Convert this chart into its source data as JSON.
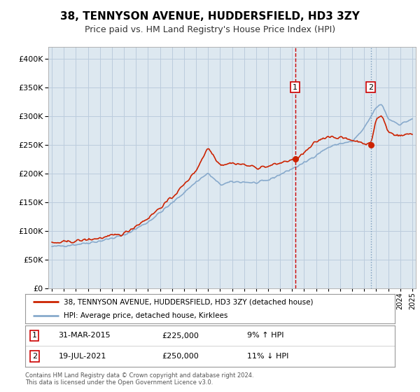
{
  "title": "38, TENNYSON AVENUE, HUDDERSFIELD, HD3 3ZY",
  "subtitle": "Price paid vs. HM Land Registry's House Price Index (HPI)",
  "legend_line1": "38, TENNYSON AVENUE, HUDDERSFIELD, HD3 3ZY (detached house)",
  "legend_line2": "HPI: Average price, detached house, Kirklees",
  "footer": "Contains HM Land Registry data © Crown copyright and database right 2024.\nThis data is licensed under the Open Government Licence v3.0.",
  "marker1_date": "31-MAR-2015",
  "marker1_price": "£225,000",
  "marker1_hpi": "9% ↑ HPI",
  "marker1_x": 2015.25,
  "marker1_y": 225000,
  "marker2_date": "19-JUL-2021",
  "marker2_price": "£250,000",
  "marker2_hpi": "11% ↓ HPI",
  "marker2_x": 2021.55,
  "marker2_y": 250000,
  "vline1_x": 2015.25,
  "vline1_color": "#cc0000",
  "vline1_style": "--",
  "vline2_x": 2021.55,
  "vline2_color": "#7799bb",
  "vline2_style": ":",
  "red_line_color": "#cc2200",
  "blue_line_color": "#88aacc",
  "background_color": "#dde8f0",
  "fig_bg_color": "#ffffff",
  "grid_color": "#bbccdd",
  "ylim": [
    0,
    420000
  ],
  "xlim": [
    1994.7,
    2025.3
  ],
  "title_fontsize": 11,
  "subtitle_fontsize": 9
}
